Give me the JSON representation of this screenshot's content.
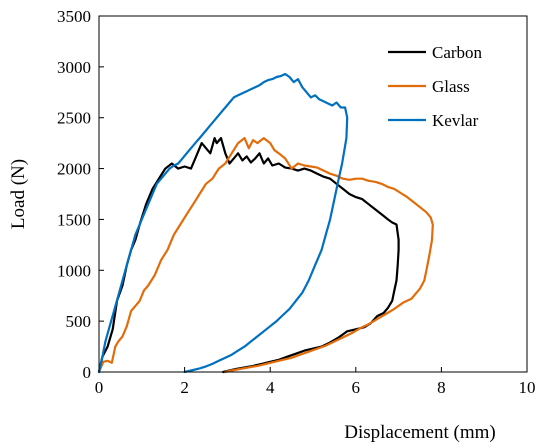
{
  "chart_data": {
    "type": "line",
    "xlabel": "Displacement (mm)",
    "ylabel": "Load (N)",
    "xlim": [
      0,
      10
    ],
    "ylim": [
      0,
      3500
    ],
    "xticks": [
      "0",
      "2",
      "4",
      "6",
      "8",
      "10"
    ],
    "yticks": [
      "0",
      "500",
      "1000",
      "1500",
      "2000",
      "2500",
      "3000",
      "3500"
    ],
    "grid": false,
    "legend_position": "top-right",
    "series": [
      {
        "name": "Carbon",
        "color": "#000000",
        "x": [
          0,
          0.08,
          0.2,
          0.32,
          0.42,
          0.55,
          0.65,
          0.75,
          0.85,
          0.95,
          1.1,
          1.25,
          1.4,
          1.55,
          1.7,
          1.85,
          2.0,
          2.15,
          2.25,
          2.4,
          2.5,
          2.6,
          2.7,
          2.75,
          2.85,
          2.95,
          3.05,
          3.15,
          3.25,
          3.35,
          3.45,
          3.55,
          3.65,
          3.75,
          3.85,
          3.95,
          4.05,
          4.2,
          4.35,
          4.5,
          4.65,
          4.8,
          4.95,
          5.1,
          5.25,
          5.4,
          5.55,
          5.7,
          5.85,
          6.0,
          6.15,
          6.3,
          6.45,
          6.6,
          6.75,
          6.85,
          6.95,
          7.0,
          7.0,
          6.98,
          6.95,
          6.9,
          6.85,
          6.75,
          6.65,
          6.5,
          6.35,
          6.2,
          6.0,
          5.8,
          5.6,
          5.4,
          5.2,
          5.0,
          4.8,
          4.6,
          4.4,
          4.2,
          4.0,
          3.8,
          3.6,
          3.4,
          3.2,
          3.0,
          2.9
        ],
        "y": [
          0,
          150,
          250,
          420,
          700,
          850,
          1050,
          1200,
          1300,
          1450,
          1650,
          1800,
          1900,
          2000,
          2050,
          2000,
          2020,
          2000,
          2100,
          2250,
          2200,
          2150,
          2300,
          2250,
          2300,
          2150,
          2050,
          2100,
          2150,
          2080,
          2120,
          2060,
          2100,
          2150,
          2050,
          2100,
          2030,
          2050,
          2010,
          2000,
          1980,
          2000,
          1980,
          1950,
          1920,
          1900,
          1850,
          1800,
          1750,
          1720,
          1700,
          1650,
          1600,
          1550,
          1500,
          1470,
          1450,
          1300,
          1200,
          1050,
          900,
          800,
          700,
          630,
          580,
          550,
          480,
          440,
          420,
          400,
          340,
          290,
          250,
          230,
          210,
          180,
          150,
          120,
          100,
          80,
          60,
          45,
          30,
          10,
          0
        ]
      },
      {
        "name": "Glass",
        "color": "#E36C0A",
        "x": [
          0,
          0.1,
          0.2,
          0.3,
          0.38,
          0.45,
          0.55,
          0.65,
          0.75,
          0.85,
          0.95,
          1.05,
          1.15,
          1.3,
          1.45,
          1.6,
          1.75,
          1.9,
          2.05,
          2.2,
          2.35,
          2.5,
          2.65,
          2.8,
          2.95,
          3.1,
          3.25,
          3.4,
          3.5,
          3.6,
          3.7,
          3.85,
          4.0,
          4.1,
          4.2,
          4.35,
          4.5,
          4.65,
          4.8,
          4.95,
          5.1,
          5.25,
          5.4,
          5.55,
          5.7,
          5.85,
          6.0,
          6.15,
          6.3,
          6.45,
          6.6,
          6.75,
          6.9,
          7.05,
          7.2,
          7.35,
          7.5,
          7.65,
          7.75,
          7.8,
          7.78,
          7.72,
          7.65,
          7.6,
          7.5,
          7.4,
          7.3,
          7.1,
          6.9,
          6.7,
          6.5,
          6.3,
          6.1,
          5.9,
          5.7,
          5.5,
          5.3,
          5.1,
          4.9,
          4.7,
          4.5,
          4.3,
          4.1,
          3.9,
          3.7,
          3.5,
          3.3,
          3.1,
          2.95
        ],
        "y": [
          0,
          100,
          110,
          90,
          250,
          300,
          350,
          450,
          600,
          650,
          700,
          800,
          850,
          950,
          1100,
          1200,
          1350,
          1450,
          1550,
          1650,
          1750,
          1850,
          1900,
          2000,
          2050,
          2150,
          2250,
          2300,
          2200,
          2280,
          2250,
          2300,
          2250,
          2180,
          2150,
          2100,
          2000,
          2050,
          2030,
          2020,
          2010,
          1980,
          1950,
          1930,
          1900,
          1890,
          1900,
          1900,
          1880,
          1870,
          1850,
          1820,
          1800,
          1760,
          1720,
          1670,
          1620,
          1570,
          1520,
          1450,
          1300,
          1150,
          1000,
          900,
          820,
          770,
          720,
          680,
          620,
          570,
          520,
          470,
          430,
          380,
          340,
          300,
          260,
          230,
          200,
          170,
          140,
          120,
          100,
          80,
          60,
          45,
          30,
          15,
          0
        ]
      },
      {
        "name": "Kevlar",
        "color": "#0070C0",
        "x": [
          0,
          0.08,
          0.15,
          0.25,
          0.35,
          0.45,
          0.55,
          0.65,
          0.75,
          0.85,
          0.95,
          1.05,
          1.15,
          1.25,
          1.35,
          1.45,
          1.55,
          1.65,
          1.75,
          1.85,
          1.95,
          2.05,
          2.15,
          2.25,
          2.35,
          2.45,
          2.55,
          2.65,
          2.75,
          2.85,
          2.95,
          3.05,
          3.15,
          3.25,
          3.35,
          3.45,
          3.55,
          3.65,
          3.75,
          3.85,
          3.95,
          4.05,
          4.15,
          4.25,
          4.35,
          4.45,
          4.55,
          4.65,
          4.75,
          4.85,
          4.95,
          5.05,
          5.15,
          5.25,
          5.35,
          5.45,
          5.55,
          5.65,
          5.75,
          5.8,
          5.78,
          5.74,
          5.68,
          5.6,
          5.5,
          5.4,
          5.3,
          5.2,
          5.05,
          4.9,
          4.75,
          4.6,
          4.45,
          4.3,
          4.15,
          4.0,
          3.85,
          3.7,
          3.55,
          3.4,
          3.25,
          3.1,
          2.95,
          2.8,
          2.65,
          2.5,
          2.35,
          2.2,
          2.05,
          2.0
        ],
        "y": [
          0,
          150,
          300,
          450,
          600,
          750,
          900,
          1050,
          1200,
          1350,
          1450,
          1550,
          1650,
          1750,
          1850,
          1900,
          1950,
          2000,
          2030,
          2050,
          2100,
          2150,
          2200,
          2250,
          2300,
          2350,
          2400,
          2450,
          2500,
          2550,
          2600,
          2650,
          2700,
          2720,
          2740,
          2760,
          2780,
          2800,
          2820,
          2850,
          2870,
          2880,
          2900,
          2910,
          2930,
          2900,
          2850,
          2880,
          2800,
          2750,
          2700,
          2720,
          2680,
          2660,
          2640,
          2620,
          2650,
          2600,
          2600,
          2500,
          2300,
          2200,
          2050,
          1900,
          1700,
          1500,
          1350,
          1200,
          1050,
          900,
          780,
          700,
          620,
          560,
          500,
          450,
          400,
          350,
          300,
          250,
          210,
          170,
          140,
          110,
          80,
          55,
          35,
          20,
          5,
          0
        ]
      }
    ]
  }
}
